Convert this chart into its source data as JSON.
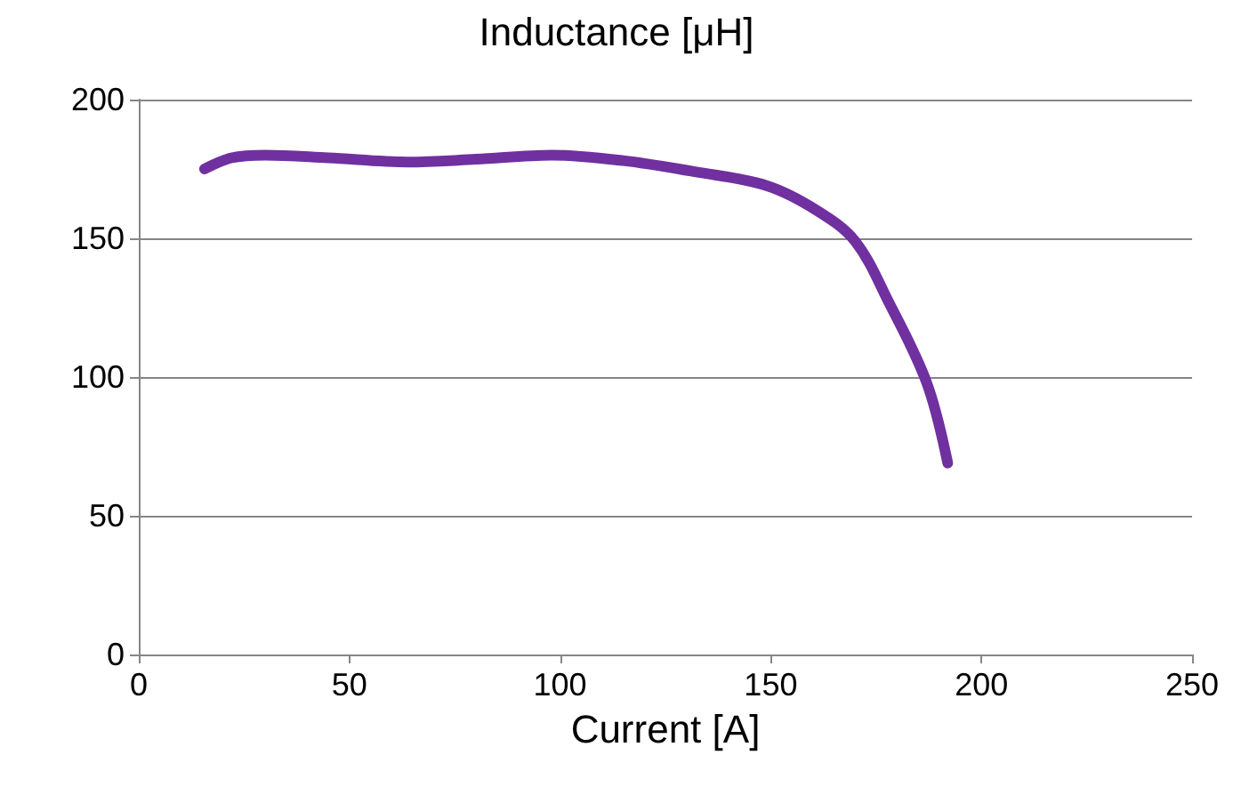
{
  "chart_data": {
    "type": "line",
    "title": "Inductance [μH]",
    "xlabel": "Current [A]",
    "x": [
      15.6,
      22,
      30,
      45,
      64,
      80,
      98,
      115,
      132,
      149,
      161,
      170,
      178,
      187,
      192
    ],
    "series": [
      {
        "color": "#7030a0",
        "values": [
          175,
          179,
          180,
          179,
          177.5,
          178.5,
          180,
          178,
          174,
          169,
          160,
          149,
          127,
          98,
          69
        ]
      }
    ],
    "xlim": [
      0,
      250
    ],
    "xticks": [
      0,
      50,
      100,
      150,
      200,
      250
    ],
    "ylim": [
      0,
      200
    ],
    "yticks": [
      0,
      50,
      100,
      150,
      200
    ],
    "grid": "y",
    "marker": "none",
    "line_style": "solid"
  }
}
